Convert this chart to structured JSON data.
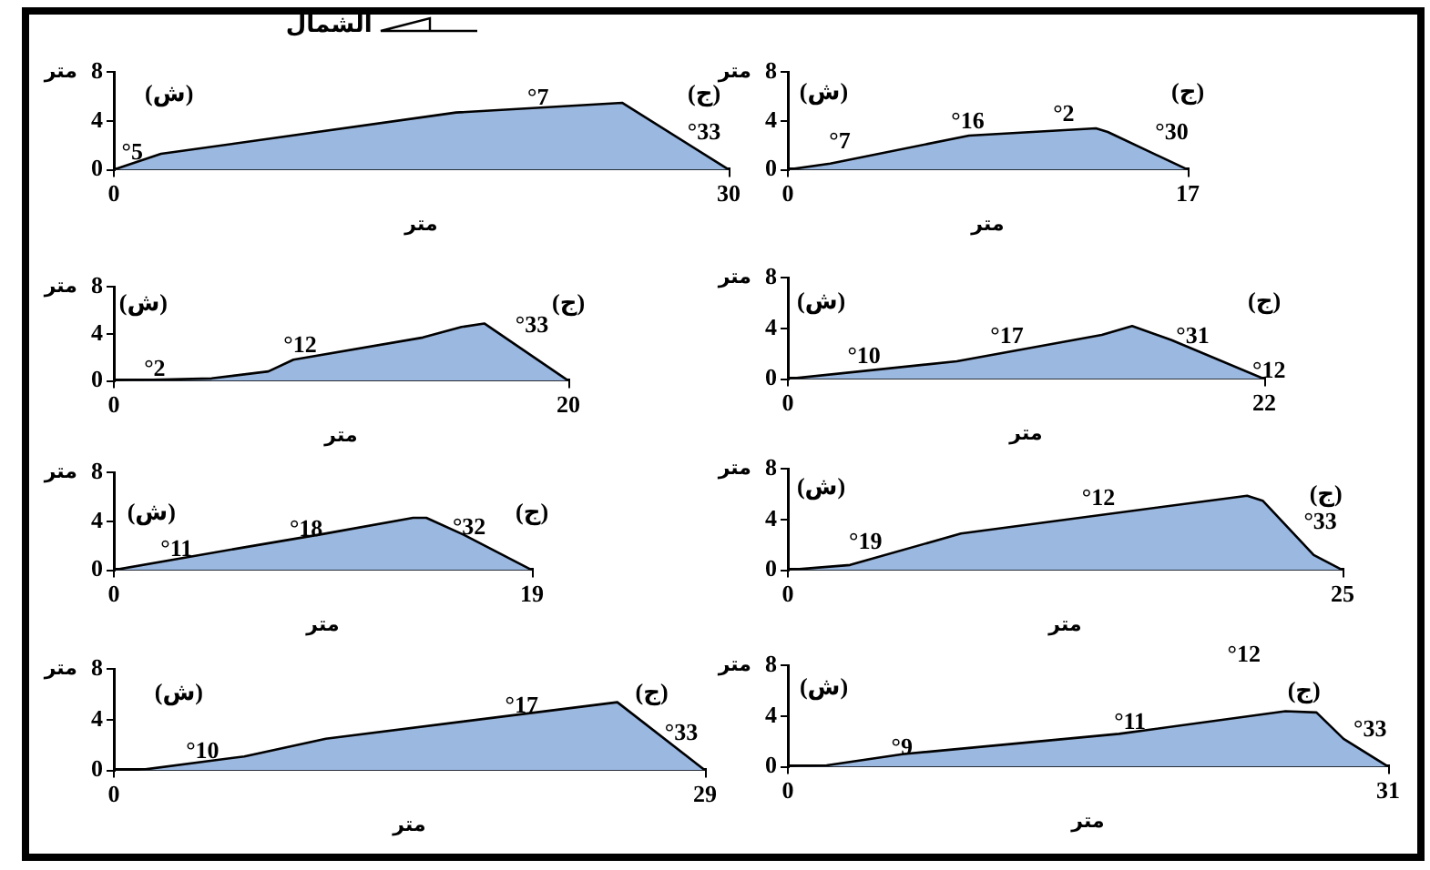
{
  "chart_data": [
    {
      "type": "area",
      "xlabel": "متر",
      "ylabel": "متر",
      "x": [
        0,
        2.3,
        16.7,
        24.8,
        30
      ],
      "values": [
        0,
        1.3,
        4.7,
        5.5,
        0
      ],
      "color": "#9bb8e0",
      "xlim": [
        0,
        30
      ],
      "xticks": [
        0,
        30
      ],
      "ylim": [
        0,
        8
      ],
      "yticks": [
        0,
        4,
        8
      ],
      "annotations": [
        "الشمال",
        "°5",
        "°7",
        "°33",
        "(ش)",
        "(ج)"
      ]
    },
    {
      "type": "area",
      "xlabel": "متر",
      "ylabel": "متر",
      "x": [
        0,
        1.8,
        7.7,
        13.1,
        13.6,
        17
      ],
      "values": [
        0,
        0.5,
        2.8,
        3.4,
        3.1,
        0
      ],
      "color": "#9bb8e0",
      "xlim": [
        0,
        17
      ],
      "xticks": [
        0,
        17
      ],
      "ylim": [
        0,
        8
      ],
      "yticks": [
        0,
        4,
        8
      ],
      "annotations": [
        "°7",
        "°16",
        "°2",
        "°30",
        "(ش)",
        "(ج)"
      ]
    },
    {
      "type": "area",
      "xlabel": "متر",
      "ylabel": "متر",
      "x": [
        0,
        4.3,
        6.8,
        7.9,
        13.6,
        15.3,
        16.3,
        20
      ],
      "values": [
        0,
        0.2,
        0.8,
        1.8,
        3.7,
        4.6,
        4.9,
        0
      ],
      "color": "#9bb8e0",
      "xlim": [
        0,
        20
      ],
      "xticks": [
        0,
        20
      ],
      "ylim": [
        0,
        8
      ],
      "yticks": [
        0,
        4,
        8
      ],
      "annotations": [
        "°2",
        "°12",
        "°33",
        "(ش)",
        "(ج)"
      ]
    },
    {
      "type": "area",
      "xlabel": "متر",
      "ylabel": "متر",
      "x": [
        0,
        7.8,
        14.5,
        15.9,
        17.7,
        22
      ],
      "values": [
        0,
        1.4,
        3.5,
        4.2,
        3.1,
        0
      ],
      "color": "#9bb8e0",
      "xlim": [
        0,
        22
      ],
      "xticks": [
        0,
        22
      ],
      "ylim": [
        0,
        8
      ],
      "yticks": [
        0,
        4,
        8
      ],
      "annotations": [
        "°10",
        "°17",
        "°31",
        "°12",
        "(ش)",
        "(ج)"
      ]
    },
    {
      "type": "area",
      "xlabel": "متر",
      "ylabel": "متر",
      "x": [
        0,
        5.7,
        9.6,
        13.6,
        14.2,
        15.9,
        19
      ],
      "values": [
        0,
        1.8,
        3.0,
        4.3,
        4.3,
        2.9,
        0
      ],
      "color": "#9bb8e0",
      "xlim": [
        0,
        19
      ],
      "xticks": [
        0,
        19
      ],
      "ylim": [
        0,
        8
      ],
      "yticks": [
        0,
        4,
        8
      ],
      "annotations": [
        "°11",
        "°18",
        "°32",
        "(ش)",
        "(ج)"
      ]
    },
    {
      "type": "area",
      "xlabel": "متر",
      "ylabel": "متر",
      "x": [
        0,
        2.8,
        7.8,
        20.7,
        21.4,
        23.7,
        25
      ],
      "values": [
        0,
        0.4,
        2.9,
        5.9,
        5.5,
        1.2,
        0
      ],
      "color": "#9bb8e0",
      "xlim": [
        0,
        25
      ],
      "xticks": [
        0,
        25
      ],
      "ylim": [
        0,
        8
      ],
      "yticks": [
        0,
        4,
        8
      ],
      "annotations": [
        "°19",
        "°12",
        "°33",
        "(ش)",
        "(ج)"
      ]
    },
    {
      "type": "area",
      "xlabel": "متر",
      "ylabel": "متر",
      "x": [
        0,
        1.2,
        6.4,
        10.4,
        24.7,
        29
      ],
      "values": [
        0,
        0,
        1.1,
        2.5,
        5.4,
        0
      ],
      "color": "#9bb8e0",
      "xlim": [
        0,
        29
      ],
      "xticks": [
        0,
        29
      ],
      "ylim": [
        0,
        8
      ],
      "yticks": [
        0,
        4,
        8
      ],
      "annotations": [
        "°10",
        "°17",
        "°33",
        "(ش)",
        "(ج)"
      ]
    },
    {
      "type": "area",
      "xlabel": "متر",
      "ylabel": "متر",
      "x": [
        0,
        2.0,
        6.0,
        17.1,
        25.7,
        27.3,
        28.7,
        31
      ],
      "values": [
        0,
        0.1,
        1.0,
        2.6,
        4.4,
        4.3,
        2.2,
        0
      ],
      "color": "#9bb8e0",
      "xlim": [
        0,
        31
      ],
      "xticks": [
        0,
        31
      ],
      "ylim": [
        0,
        8
      ],
      "yticks": [
        0,
        4,
        8
      ],
      "annotations": [
        "°12",
        "°9",
        "°11",
        "°33",
        "(ش)",
        "(ج)"
      ]
    }
  ]
}
